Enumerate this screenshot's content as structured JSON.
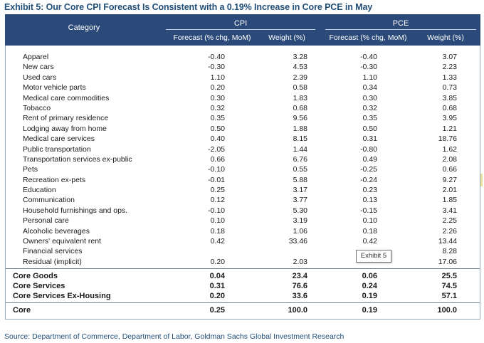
{
  "title": "Exhibit 5: Our Core CPI Forecast Is Consistent with a 0.19% Increase in Core PCE in May",
  "header": {
    "category": "Category",
    "cpi": "CPI",
    "pce": "PCE",
    "forecast": "Forecast (% chg, MoM)",
    "weight": "Weight (%)"
  },
  "rows": [
    {
      "category": "Apparel",
      "cpi_forecast": "-0.40",
      "cpi_weight": "3.28",
      "pce_forecast": "-0.40",
      "pce_weight": "3.07"
    },
    {
      "category": "New cars",
      "cpi_forecast": "-0.30",
      "cpi_weight": "4.53",
      "pce_forecast": "-0.30",
      "pce_weight": "2.23"
    },
    {
      "category": "Used cars",
      "cpi_forecast": "1.10",
      "cpi_weight": "2.39",
      "pce_forecast": "1.10",
      "pce_weight": "1.33"
    },
    {
      "category": "Motor vehicle parts",
      "cpi_forecast": "0.20",
      "cpi_weight": "0.58",
      "pce_forecast": "0.34",
      "pce_weight": "0.73"
    },
    {
      "category": "Medical care commodities",
      "cpi_forecast": "0.30",
      "cpi_weight": "1.83",
      "pce_forecast": "0.30",
      "pce_weight": "3.85"
    },
    {
      "category": "Tobacco",
      "cpi_forecast": "0.32",
      "cpi_weight": "0.68",
      "pce_forecast": "0.32",
      "pce_weight": "0.68"
    },
    {
      "category": "Rent of primary residence",
      "cpi_forecast": "0.35",
      "cpi_weight": "9.56",
      "pce_forecast": "0.35",
      "pce_weight": "3.95"
    },
    {
      "category": "Lodging away from home",
      "cpi_forecast": "0.50",
      "cpi_weight": "1.88",
      "pce_forecast": "0.50",
      "pce_weight": "1.21"
    },
    {
      "category": "Medical care services",
      "cpi_forecast": "0.40",
      "cpi_weight": "8.15",
      "pce_forecast": "0.31",
      "pce_weight": "18.76"
    },
    {
      "category": "Public transportation",
      "cpi_forecast": "-2.05",
      "cpi_weight": "1.44",
      "pce_forecast": "-0.80",
      "pce_weight": "1.62"
    },
    {
      "category": "Transportation services ex-public",
      "cpi_forecast": "0.66",
      "cpi_weight": "6.76",
      "pce_forecast": "0.49",
      "pce_weight": "2.08"
    },
    {
      "category": "Pets",
      "cpi_forecast": "-0.10",
      "cpi_weight": "0.55",
      "pce_forecast": "-0.25",
      "pce_weight": "0.66"
    },
    {
      "category": "Recreation ex-pets",
      "cpi_forecast": "-0.01",
      "cpi_weight": "5.88",
      "pce_forecast": "-0.24",
      "pce_weight": "9.27"
    },
    {
      "category": "Education",
      "cpi_forecast": "0.25",
      "cpi_weight": "3.17",
      "pce_forecast": "0.23",
      "pce_weight": "2.01"
    },
    {
      "category": "Communication",
      "cpi_forecast": "0.12",
      "cpi_weight": "3.77",
      "pce_forecast": "0.13",
      "pce_weight": "1.85"
    },
    {
      "category": "Household furnishings and ops.",
      "cpi_forecast": "-0.10",
      "cpi_weight": "5.30",
      "pce_forecast": "-0.15",
      "pce_weight": "3.41"
    },
    {
      "category": "Personal care",
      "cpi_forecast": "0.10",
      "cpi_weight": "3.19",
      "pce_forecast": "0.10",
      "pce_weight": "2.25"
    },
    {
      "category": "Alcoholic beverages",
      "cpi_forecast": "0.18",
      "cpi_weight": "1.06",
      "pce_forecast": "0.18",
      "pce_weight": "2.26"
    },
    {
      "category": "Owners' equivalent rent",
      "cpi_forecast": "0.42",
      "cpi_weight": "33.46",
      "pce_forecast": "0.42",
      "pce_weight": "13.44"
    },
    {
      "category": "Financial services",
      "cpi_forecast": "",
      "cpi_weight": "",
      "pce_forecast": "",
      "pce_weight": "8.28"
    },
    {
      "category": "Residual (implicit)",
      "cpi_forecast": "0.20",
      "cpi_weight": "2.03",
      "pce_forecast": "",
      "pce_weight": "17.06"
    }
  ],
  "summary": [
    {
      "category": "Core Goods",
      "cpi_forecast": "0.04",
      "cpi_weight": "23.4",
      "pce_forecast": "0.06",
      "pce_weight": "25.5"
    },
    {
      "category": "Core Services",
      "cpi_forecast": "0.31",
      "cpi_weight": "76.6",
      "pce_forecast": "0.24",
      "pce_weight": "74.5"
    },
    {
      "category": "Core Services Ex-Housing",
      "cpi_forecast": "0.20",
      "cpi_weight": "33.6",
      "pce_forecast": "0.19",
      "pce_weight": "57.1"
    }
  ],
  "total": {
    "category": "Core",
    "cpi_forecast": "0.25",
    "cpi_weight": "100.0",
    "pce_forecast": "0.19",
    "pce_weight": "100.0"
  },
  "tooltip": "Exhibit 5",
  "source": "Source: Department of Commerce, Department of Labor, Goldman Sachs Global Investment Research",
  "colors": {
    "header_bg": "#2b4a7a",
    "title": "#1f4e79"
  }
}
